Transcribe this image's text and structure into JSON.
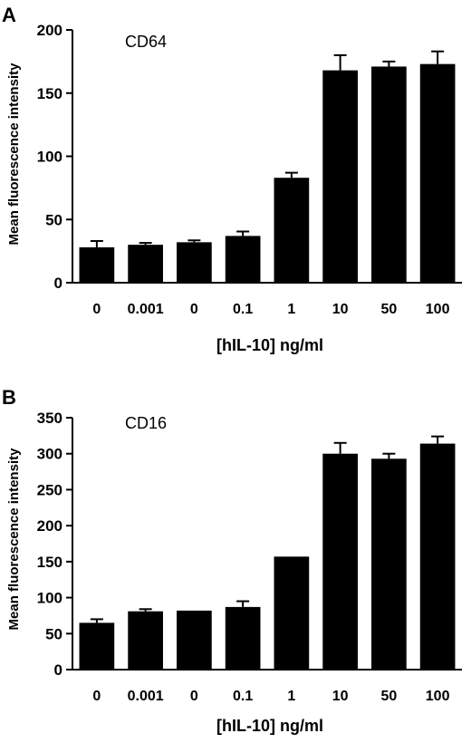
{
  "chart_data": [
    {
      "type": "bar",
      "panel": "A",
      "label": "CD64",
      "categories": [
        "0",
        "0.001",
        "0",
        "0.1",
        "1",
        "10",
        "50",
        "100"
      ],
      "values": [
        28,
        30,
        32,
        37,
        83,
        168,
        171,
        173
      ],
      "errors": [
        5,
        1.5,
        1.5,
        3.5,
        4,
        12,
        4,
        10
      ],
      "xlabel": "[hIL-10] ng/ml",
      "ylabel": "Mean fluorescence intensity",
      "ylim": [
        0,
        200
      ],
      "yticks": [
        "0",
        "50",
        "100",
        "150",
        "200"
      ],
      "bar_color": "#000000"
    },
    {
      "type": "bar",
      "panel": "B",
      "label": "CD16",
      "categories": [
        "0",
        "0.001",
        "0",
        "0.1",
        "1",
        "10",
        "50",
        "100"
      ],
      "values": [
        65,
        81,
        82,
        87,
        157,
        300,
        293,
        314
      ],
      "errors": [
        5,
        3,
        0,
        8,
        0,
        15,
        7,
        10
      ],
      "xlabel": "[hIL-10] ng/ml",
      "ylabel": "Mean fluorescence intensity",
      "ylim": [
        0,
        350
      ],
      "yticks": [
        "0",
        "50",
        "100",
        "150",
        "200",
        "250",
        "300",
        "350"
      ],
      "bar_color": "#000000"
    }
  ]
}
